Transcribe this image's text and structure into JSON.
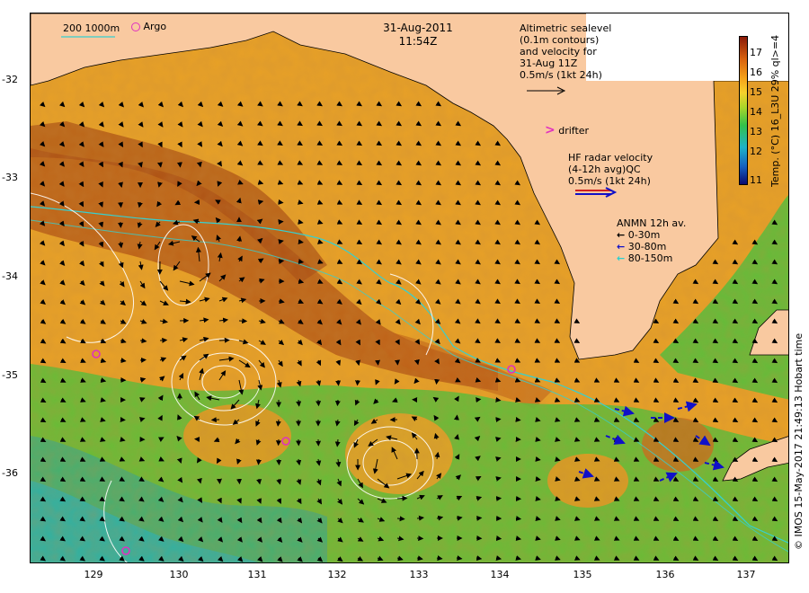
{
  "header": {
    "date": "31-Aug-2011",
    "time": "11:54Z",
    "depth_legend": "200  1000m",
    "argo_label": "Argo"
  },
  "legend": {
    "altimetric": [
      "Altimetric sealevel",
      "(0.1m contours)",
      "and velocity for",
      "31-Aug 11Z",
      "0.5m/s (1kt 24h)"
    ],
    "drifter": "drifter",
    "hf_radar": [
      "HF radar velocity",
      "(4-12h avg)QC",
      "0.5m/s (1kt 24h)"
    ],
    "anmn_title": "ANMN 12h av.",
    "anmn_items": [
      {
        "label": "0-30m",
        "color": "#000000"
      },
      {
        "label": "30-80m",
        "color": "#1010c8"
      },
      {
        "label": "80-150m",
        "color": "#2ad0d0"
      }
    ]
  },
  "colorbar": {
    "title": "Temp. (°C) 16_L3U 29% ql>=4",
    "ticks": [
      "17",
      "16",
      "15",
      "14",
      "13",
      "12",
      "11"
    ]
  },
  "axes": {
    "lat_labels": [
      "-32",
      "-33",
      "-34",
      "-35",
      "-36"
    ],
    "lon_labels": [
      "129",
      "130",
      "131",
      "132",
      "133",
      "134",
      "135",
      "136",
      "137"
    ]
  },
  "credit": "© IMOS 15-May-2017 21:49:13 Hobart time",
  "colors": {
    "land": "#f9c9a0",
    "warm": "#e39a22",
    "hot": "#b45a14",
    "cool_green": "#5bbf3a",
    "cold": "#2bb3a8",
    "argo": "#e030c0"
  }
}
